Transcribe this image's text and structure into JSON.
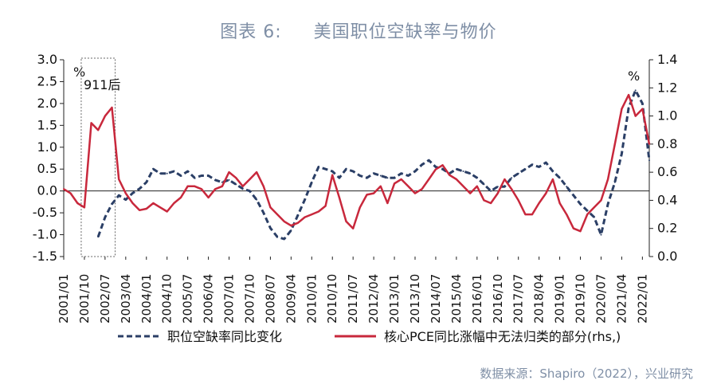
{
  "figure_label": "图表 6:",
  "title": "美国职位空缺率与物价",
  "source": "数据来源：Shapiro（2022），兴业研究",
  "chart_data": {
    "type": "line",
    "x": [
      "2001/01",
      "2001/04",
      "2001/07",
      "2001/10",
      "2002/01",
      "2002/04",
      "2002/07",
      "2002/10",
      "2003/01",
      "2003/04",
      "2003/07",
      "2003/10",
      "2004/01",
      "2004/04",
      "2004/07",
      "2004/10",
      "2005/01",
      "2005/04",
      "2005/07",
      "2005/10",
      "2006/01",
      "2006/04",
      "2006/07",
      "2006/10",
      "2007/01",
      "2007/04",
      "2007/07",
      "2007/10",
      "2008/01",
      "2008/04",
      "2008/07",
      "2008/10",
      "2009/01",
      "2009/04",
      "2009/07",
      "2009/10",
      "2010/01",
      "2010/04",
      "2010/07",
      "2010/10",
      "2011/01",
      "2011/04",
      "2011/07",
      "2011/10",
      "2012/01",
      "2012/04",
      "2012/07",
      "2012/10",
      "2013/01",
      "2013/04",
      "2013/07",
      "2013/10",
      "2014/01",
      "2014/04",
      "2014/07",
      "2014/10",
      "2015/01",
      "2015/04",
      "2015/07",
      "2015/10",
      "2016/01",
      "2016/04",
      "2016/07",
      "2016/10",
      "2017/01",
      "2017/04",
      "2017/07",
      "2017/10",
      "2018/01",
      "2018/04",
      "2018/07",
      "2018/10",
      "2019/01",
      "2019/04",
      "2019/07",
      "2019/10",
      "2020/01",
      "2020/04",
      "2020/07",
      "2020/10",
      "2021/01",
      "2021/04",
      "2021/07",
      "2021/10",
      "2022/01",
      "2022/04"
    ],
    "x_tick_labels": [
      "2001/01",
      "2001/10",
      "2002/07",
      "2003/04",
      "2004/01",
      "2004/10",
      "2005/07",
      "2006/04",
      "2007/01",
      "2007/10",
      "2008/07",
      "2009/04",
      "2010/01",
      "2010/10",
      "2011/07",
      "2012/04",
      "2013/01",
      "2013/10",
      "2014/07",
      "2015/04",
      "2016/01",
      "2016/10",
      "2017/07",
      "2018/04",
      "2019/01",
      "2019/10",
      "2020/07",
      "2021/04",
      "2022/01"
    ],
    "series": [
      {
        "name": "职位空缺率同比变化",
        "axis": "left",
        "style": "dashed",
        "color": "#2b3f66",
        "values": [
          null,
          null,
          null,
          null,
          null,
          -1.05,
          -0.6,
          -0.3,
          -0.1,
          -0.2,
          -0.05,
          0.05,
          0.2,
          0.5,
          0.4,
          0.4,
          0.45,
          0.35,
          0.45,
          0.3,
          0.35,
          0.35,
          0.25,
          0.2,
          0.25,
          0.15,
          0.05,
          0.0,
          -0.2,
          -0.5,
          -0.85,
          -1.05,
          -1.1,
          -0.9,
          -0.55,
          -0.2,
          0.2,
          0.55,
          0.5,
          0.45,
          0.3,
          0.5,
          0.45,
          0.35,
          0.3,
          0.4,
          0.35,
          0.3,
          0.3,
          0.4,
          0.35,
          0.45,
          0.6,
          0.7,
          0.55,
          0.5,
          0.4,
          0.5,
          0.45,
          0.4,
          0.3,
          0.15,
          0.0,
          0.1,
          0.1,
          0.3,
          0.4,
          0.5,
          0.6,
          0.55,
          0.65,
          0.45,
          0.3,
          0.1,
          -0.1,
          -0.3,
          -0.45,
          -0.6,
          -1.0,
          -0.3,
          0.2,
          0.85,
          1.9,
          2.3,
          2.0,
          0.7
        ]
      },
      {
        "name": "核心PCE同比涨幅中无法归类的部分(rhs,)",
        "axis": "right",
        "style": "solid",
        "color": "#c8283c",
        "values": [
          0.48,
          0.45,
          0.38,
          0.35,
          0.95,
          0.9,
          1.0,
          1.06,
          0.55,
          0.45,
          0.38,
          0.33,
          0.34,
          0.38,
          0.35,
          0.32,
          0.38,
          0.42,
          0.5,
          0.5,
          0.48,
          0.42,
          0.48,
          0.5,
          0.6,
          0.56,
          0.5,
          0.55,
          0.6,
          0.5,
          0.35,
          0.3,
          0.25,
          0.22,
          0.24,
          0.28,
          0.3,
          0.32,
          0.36,
          0.58,
          0.42,
          0.25,
          0.2,
          0.35,
          0.44,
          0.45,
          0.5,
          0.38,
          0.52,
          0.55,
          0.5,
          0.45,
          0.48,
          0.55,
          0.62,
          0.65,
          0.58,
          0.55,
          0.5,
          0.45,
          0.5,
          0.4,
          0.38,
          0.45,
          0.55,
          0.48,
          0.4,
          0.3,
          0.3,
          0.38,
          0.45,
          0.55,
          0.38,
          0.3,
          0.2,
          0.18,
          0.3,
          0.35,
          0.4,
          0.55,
          0.8,
          1.05,
          1.15,
          1.0,
          1.05,
          0.8
        ]
      }
    ],
    "yleft": {
      "ylim": [
        -1.5,
        3.0
      ],
      "ticks": [
        "3.0",
        "2.5",
        "2.0",
        "1.5",
        "1.0",
        "0.5",
        "0.0",
        "-0.5",
        "-1.0",
        "-1.5"
      ],
      "unit_label": "%"
    },
    "yright": {
      "ylim": [
        0.0,
        1.4
      ],
      "ticks": [
        "1.4",
        "1.2",
        "1.0",
        "0.8",
        "0.6",
        "0.4",
        "0.2",
        "0.0"
      ],
      "unit_label": "%"
    },
    "annotation": {
      "text": "911后"
    },
    "legend": {
      "placement": "bottom"
    },
    "grid": false
  }
}
